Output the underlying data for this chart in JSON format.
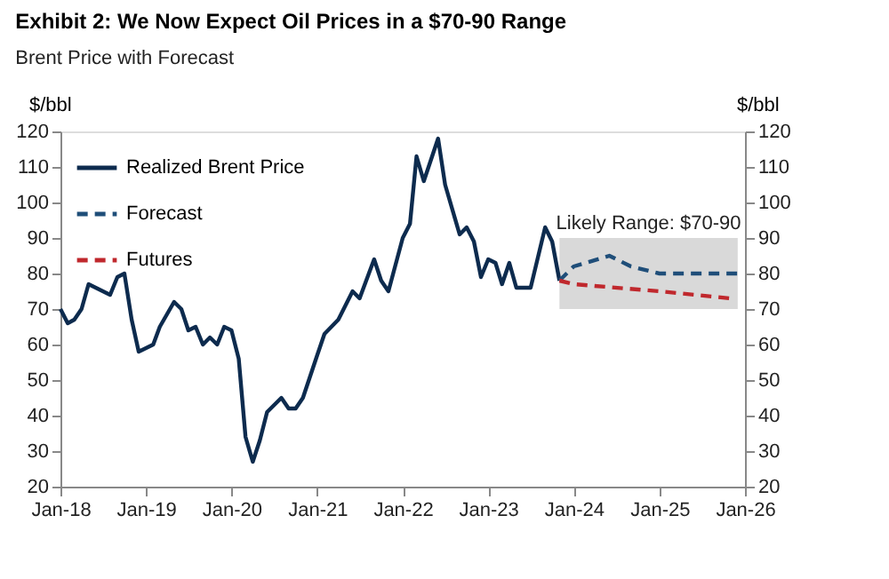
{
  "chart_data": {
    "type": "line",
    "title": "Exhibit 2: We Now Expect Oil Prices in a $70-90 Range",
    "subtitle": "Brent Price with Forecast",
    "ylabel": "$/bbl",
    "y2label": "$/bbl",
    "xlim": [
      "2018-01",
      "2026-01"
    ],
    "xticks": [
      {
        "value": "2018-01",
        "label": "Jan-18"
      },
      {
        "value": "2019-01",
        "label": "Jan-19"
      },
      {
        "value": "2020-01",
        "label": "Jan-20"
      },
      {
        "value": "2021-01",
        "label": "Jan-21"
      },
      {
        "value": "2022-01",
        "label": "Jan-22"
      },
      {
        "value": "2023-01",
        "label": "Jan-23"
      },
      {
        "value": "2024-01",
        "label": "Jan-24"
      },
      {
        "value": "2025-01",
        "label": "Jan-25"
      },
      {
        "value": "2026-01",
        "label": "Jan-26"
      }
    ],
    "ylim": [
      20,
      120
    ],
    "yticks": [
      20,
      30,
      40,
      50,
      60,
      70,
      80,
      90,
      100,
      110,
      120
    ],
    "y2lim": [
      20,
      120
    ],
    "y2ticks": [
      20,
      30,
      40,
      50,
      60,
      70,
      80,
      90,
      100,
      110,
      120
    ],
    "grid": false,
    "legend": "top left",
    "bands": [
      {
        "axis": "y",
        "from": 70,
        "to": 90,
        "label": "Likely Range: $70-90",
        "color": "#d9d9d9"
      }
    ],
    "series": [
      {
        "name": "Realized Brent Price",
        "color": "#0d2b4e",
        "line_style": "solid",
        "x": [
          "2018-01",
          "2018-02",
          "2018-03",
          "2018-04",
          "2018-05",
          "2018-08",
          "2018-09",
          "2018-10",
          "2018-11",
          "2018-12",
          "2019-02",
          "2019-03",
          "2019-05",
          "2019-06",
          "2019-07",
          "2019-08",
          "2019-09",
          "2019-10",
          "2019-11",
          "2019-12",
          "2020-01",
          "2020-02",
          "2020-03",
          "2020-04",
          "2020-05",
          "2020-06",
          "2020-08",
          "2020-09",
          "2020-10",
          "2020-11",
          "2021-01",
          "2021-02",
          "2021-04",
          "2021-06",
          "2021-07",
          "2021-09",
          "2021-10",
          "2021-11",
          "2022-01",
          "2022-02",
          "2022-03",
          "2022-04",
          "2022-06",
          "2022-07",
          "2022-09",
          "2022-10",
          "2022-11",
          "2022-12",
          "2023-01",
          "2023-02",
          "2023-03",
          "2023-04",
          "2023-05",
          "2023-07",
          "2023-09",
          "2023-10",
          "2023-11"
        ],
        "values": [
          70,
          66,
          67,
          70,
          77,
          74,
          79,
          80,
          67,
          58,
          60,
          65,
          72,
          70,
          64,
          65,
          60,
          62,
          60,
          65,
          64,
          56,
          34,
          27,
          33,
          41,
          45,
          42,
          42,
          45,
          57,
          63,
          67,
          75,
          73,
          84,
          78,
          75,
          90,
          94,
          113,
          106,
          118,
          105,
          91,
          93,
          89,
          79,
          84,
          83,
          77,
          83,
          76,
          76,
          93,
          89,
          78
        ]
      },
      {
        "name": "Forecast",
        "color": "#1f4e79",
        "line_style": "dashed",
        "x": [
          "2023-11",
          "2024-01",
          "2024-06",
          "2024-09",
          "2025-01",
          "2025-12"
        ],
        "values": [
          78,
          82,
          85,
          82,
          80,
          80
        ]
      },
      {
        "name": "Futures",
        "color": "#c0282d",
        "line_style": "dashed",
        "x": [
          "2023-11",
          "2024-01",
          "2025-01",
          "2025-11"
        ],
        "values": [
          78,
          77,
          75,
          73
        ]
      }
    ]
  }
}
